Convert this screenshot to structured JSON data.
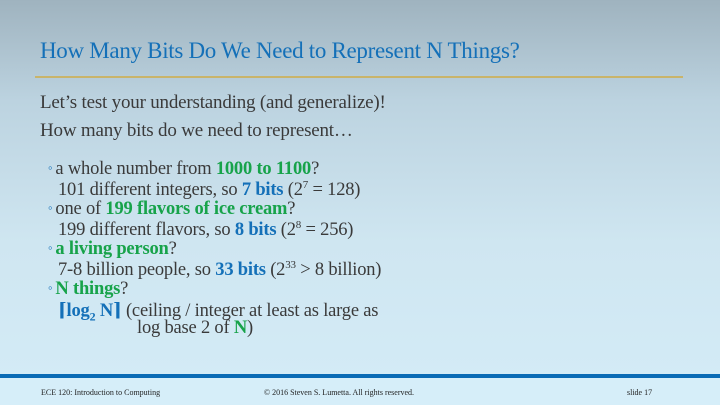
{
  "title": "How Many Bits Do We Need to Represent N Things?",
  "intro": [
    "Let’s test your understanding (and generalize)!",
    "How many bits do we need to represent…"
  ],
  "items": [
    {
      "q_pre": "a whole number from ",
      "q_em": "1000 to 1100",
      "q_post": "?",
      "a_pre": "101 different integers, so ",
      "a_em": "7 bits",
      "a_post_open": " (2",
      "a_exp": "7",
      "a_post": " = 128)"
    },
    {
      "q_pre": "one of ",
      "q_em": "199 flavors of ice cream",
      "q_post": "?",
      "a_pre": "199 different flavors, so ",
      "a_em": "8 bits",
      "a_post_open": " (2",
      "a_exp": "8",
      "a_post": " = 256)"
    },
    {
      "q_pre": "",
      "q_em": "a living person",
      "q_post": "?",
      "a_pre": "7-8 billion people, so ",
      "a_em": "33 bits",
      "a_post_open": " (2",
      "a_exp": "33",
      "a_post": " > 8 billion)"
    },
    {
      "q_pre": "",
      "q_em": "N things",
      "q_post": "?",
      "formula_open": "⌈log",
      "formula_sub": "2",
      "formula_close": " N⌉",
      "a_line1": " (ceiling / integer at least as large as",
      "a_line2_pre": "log base 2 of ",
      "a_line2_em": "N",
      "a_line2_post": ")"
    }
  ],
  "footer": {
    "course": "ECE 120: Introduction to Computing",
    "copyright": "© 2016 Steven S. Lumetta.  All rights reserved.",
    "slide": "slide 17"
  },
  "colors": {
    "title": "#1470b8",
    "green": "#17a34a",
    "rule": "#c9b46a",
    "bar": "#0a6bb5"
  }
}
